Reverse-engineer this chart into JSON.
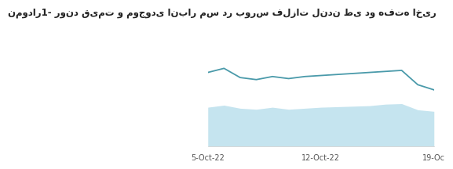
{
  "title": "نمودار1- روند قیمت و موجودی انبار مس در بورس فلزات لندن طی دو هفته اخیر",
  "x_ticks": [
    "5-Oct-22",
    "12-Oct-22",
    "19-Oc"
  ],
  "x_tick_positions": [
    0,
    7,
    14
  ],
  "line_x": [
    0,
    1,
    2,
    3,
    4,
    5,
    6,
    7,
    8,
    9,
    10,
    11,
    12,
    13,
    14
  ],
  "line_y": [
    0.72,
    0.76,
    0.67,
    0.65,
    0.68,
    0.66,
    0.68,
    0.69,
    0.7,
    0.71,
    0.72,
    0.73,
    0.74,
    0.6,
    0.55
  ],
  "fill_y": [
    0.38,
    0.4,
    0.37,
    0.36,
    0.38,
    0.36,
    0.37,
    0.38,
    0.385,
    0.39,
    0.395,
    0.41,
    0.415,
    0.355,
    0.34
  ],
  "line_color": "#4a9aaa",
  "fill_color": "#c5e4ef",
  "fill_alpha": 1.0,
  "background_color": "#ffffff",
  "title_fontsize": 8.5,
  "title_color": "#222222",
  "tick_fontsize": 7,
  "tick_color": "#555555",
  "ylim": [
    0.0,
    1.1
  ],
  "line_linewidth": 1.3
}
